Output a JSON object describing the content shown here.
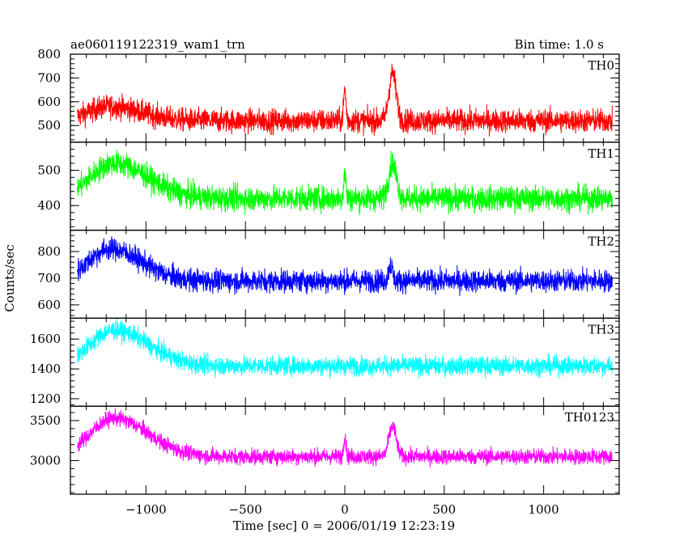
{
  "chart_data": {
    "type": "line",
    "title": "ae060119122319_wam1_trn",
    "subtitle": "Bin time: 1.0 s",
    "xlabel": "Time [sec] 0 = 2006/01/19 12:23:19",
    "ylabel": "Counts/sec",
    "xlim": [
      -1380,
      1380
    ],
    "xticks": [
      -1000,
      -500,
      0,
      500,
      1000
    ],
    "xtick_labels": [
      "−1000",
      "−500",
      "0",
      "500",
      "1000"
    ],
    "panels": [
      {
        "name": "TH0",
        "color": "#ff0000",
        "ylim": [
          430,
          800
        ],
        "yticks": [
          500,
          600,
          700,
          800
        ],
        "baseline": 520,
        "noise": 35,
        "features": [
          {
            "center": -1180,
            "width": 110,
            "amplitude": 60
          },
          {
            "center": 0,
            "width": 6,
            "amplitude": 130
          },
          {
            "center": 240,
            "width": 18,
            "amplitude": 200
          }
        ]
      },
      {
        "name": "TH1",
        "color": "#00ff00",
        "ylim": [
          330,
          580
        ],
        "yticks": [
          400,
          500
        ],
        "baseline": 420,
        "noise": 25,
        "features": [
          {
            "center": -1160,
            "width": 120,
            "amplitude": 100
          },
          {
            "center": 0,
            "width": 6,
            "amplitude": 70
          },
          {
            "center": 240,
            "width": 20,
            "amplitude": 100
          }
        ]
      },
      {
        "name": "TH2",
        "color": "#0000ff",
        "ylim": [
          550,
          880
        ],
        "yticks": [
          600,
          700,
          800
        ],
        "baseline": 690,
        "noise": 30,
        "features": [
          {
            "center": -1180,
            "width": 110,
            "amplitude": 120
          },
          {
            "center": 230,
            "width": 10,
            "amplitude": 60
          }
        ]
      },
      {
        "name": "TH3",
        "color": "#00ffff",
        "ylim": [
          1150,
          1740
        ],
        "yticks": [
          1200,
          1400,
          1600
        ],
        "baseline": 1420,
        "noise": 45,
        "features": [
          {
            "center": -1160,
            "width": 120,
            "amplitude": 240
          }
        ]
      },
      {
        "name": "TH0123",
        "color": "#ff00ff",
        "ylim": [
          2580,
          3680
        ],
        "yticks": [
          3000,
          3500
        ],
        "baseline": 3050,
        "noise": 70,
        "features": [
          {
            "center": -1160,
            "width": 120,
            "amplitude": 480
          },
          {
            "center": 0,
            "width": 6,
            "amplitude": 260
          },
          {
            "center": 240,
            "width": 18,
            "amplitude": 380
          }
        ]
      }
    ]
  }
}
